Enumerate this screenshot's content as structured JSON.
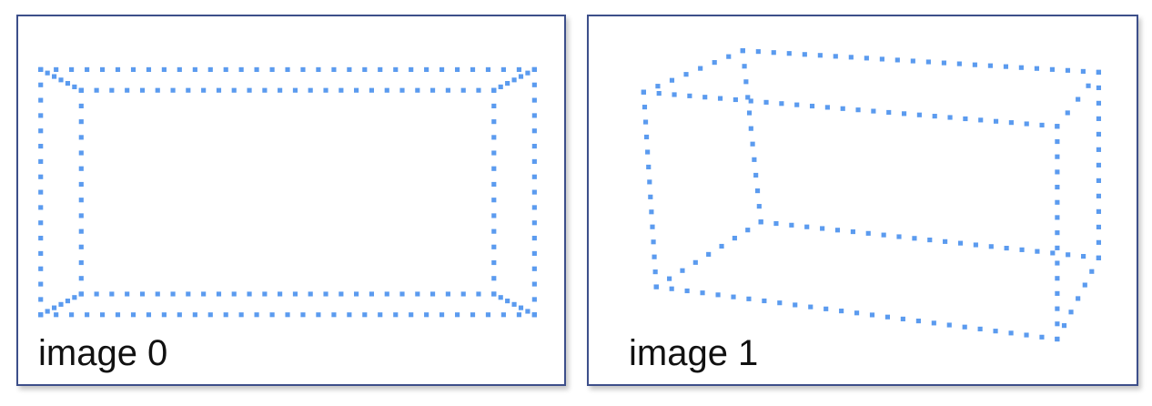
{
  "dot_color": "#5b9bef",
  "border_color": "#3d4f8a",
  "panels": [
    {
      "caption": "image 0"
    },
    {
      "caption": "image 1"
    }
  ]
}
